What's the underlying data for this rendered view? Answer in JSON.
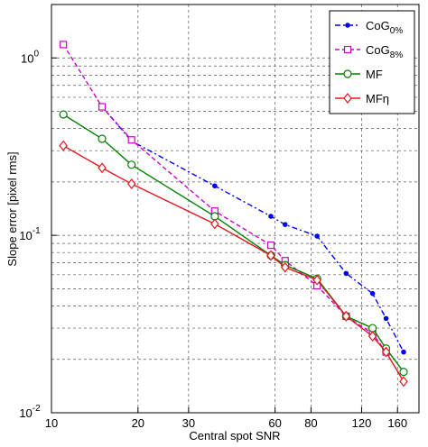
{
  "chart_data": {
    "type": "line",
    "xlabel": "Central spot SNR",
    "ylabel": "Slope error [pixel rms]",
    "x": [
      11,
      15,
      19,
      37,
      58,
      65,
      84,
      106,
      131,
      146,
      168
    ],
    "series": [
      {
        "name": "CoG",
        "sub": "0%",
        "color": "#0000ff",
        "dash": "6 3 2 3",
        "marker": "dot",
        "values": [
          null,
          0.53,
          0.34,
          0.19,
          0.128,
          0.115,
          0.099,
          0.061,
          0.047,
          0.034,
          0.022
        ]
      },
      {
        "name": "CoG",
        "sub": "8%",
        "color": "#cc00cc",
        "dash": "5 3",
        "marker": "square",
        "values": [
          1.19,
          0.53,
          0.345,
          0.137,
          0.088,
          0.072,
          0.052,
          0.035,
          0.028,
          0.022,
          null
        ]
      },
      {
        "name": "MF",
        "color": "#008000",
        "dash": "",
        "marker": "circle",
        "values": [
          0.48,
          0.35,
          0.25,
          0.128,
          0.077,
          0.068,
          0.057,
          0.035,
          0.03,
          0.023,
          0.017
        ]
      },
      {
        "name": "MFη",
        "color": "#e8141c",
        "dash": "",
        "marker": "diamond",
        "values": [
          0.32,
          0.24,
          0.195,
          0.116,
          0.077,
          0.066,
          0.056,
          0.035,
          0.027,
          0.022,
          0.015
        ]
      }
    ],
    "xlim": [
      10,
      190
    ],
    "ylim": [
      0.01,
      2
    ],
    "xscale": "log",
    "yscale": "log",
    "xticks": [
      10,
      20,
      30,
      60,
      80,
      120,
      160
    ],
    "yticks": [
      {
        "value": 0.01,
        "label": "10",
        "exp": "-2"
      },
      {
        "value": 0.1,
        "label": "10",
        "exp": "-1"
      },
      {
        "value": 1,
        "label": "10",
        "exp": "0"
      }
    ],
    "yminor": [
      0.02,
      0.03,
      0.04,
      0.05,
      0.06,
      0.07,
      0.08,
      0.09,
      0.2,
      0.3,
      0.4,
      0.5,
      0.6,
      0.7,
      0.8,
      0.9,
      2
    ],
    "grid": true,
    "legend": "upper right"
  }
}
